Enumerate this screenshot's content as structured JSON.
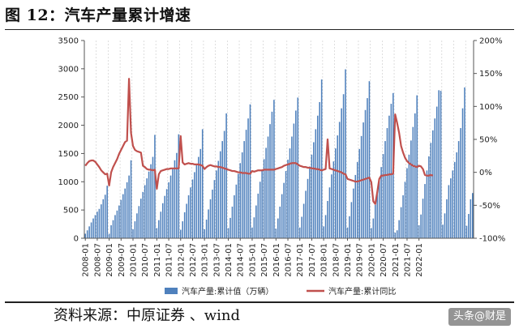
{
  "title": "图 12：汽车产量累计增速",
  "source": "资料来源：中原证券 、wind",
  "watermark": "头条@财是",
  "colors": {
    "bar": "#4f81bd",
    "line": "#c0504d"
  },
  "chart_data": {
    "type": "bar+line",
    "y_left": {
      "ticks": [
        0,
        500,
        1000,
        1500,
        2000,
        2500,
        3000,
        3500
      ],
      "range": [
        0,
        3500
      ]
    },
    "y_right": {
      "ticks": [
        "-100%",
        "-50%",
        "0%",
        "50%",
        "100%",
        "150%",
        "200%"
      ],
      "range": [
        -100,
        200
      ]
    },
    "x_tick_labels": [
      "2008-01",
      "2008-07",
      "2009-01",
      "2009-07",
      "2010-01",
      "2010-07",
      "2011-01",
      "2011-07",
      "2012-01",
      "2012-07",
      "2013-01",
      "2013-07",
      "2014-01",
      "2014-07",
      "2015-01",
      "2015-07",
      "2016-01",
      "2016-07",
      "2017-01",
      "2017-07",
      "2018-01",
      "2018-07",
      "2019-01",
      "2019-07",
      "2020-01",
      "2020-07",
      "2021-01",
      "2021-07",
      "2022-01"
    ],
    "start_month": "2008-01",
    "series": [
      {
        "name": "汽车产量:累计值（万辆）",
        "type": "bar",
        "axis": "left",
        "values": [
          80,
          140,
          210,
          280,
          350,
          410,
          470,
          520,
          600,
          690,
          770,
          930,
          80,
          230,
          320,
          410,
          490,
          580,
          680,
          780,
          880,
          990,
          1110,
          1380,
          160,
          300,
          440,
          570,
          700,
          820,
          940,
          1060,
          1180,
          1310,
          1440,
          1830,
          180,
          320,
          470,
          620,
          750,
          870,
          990,
          1110,
          1240,
          1380,
          1510,
          1840,
          150,
          300,
          460,
          610,
          760,
          900,
          1040,
          1170,
          1300,
          1440,
          1580,
          1930,
          160,
          330,
          510,
          690,
          860,
          1030,
          1200,
          1370,
          1540,
          1720,
          1900,
          2210,
          180,
          360,
          560,
          760,
          950,
          1140,
          1330,
          1520,
          1720,
          1920,
          2120,
          2370,
          190,
          370,
          580,
          790,
          1000,
          1200,
          1400,
          1600,
          1800,
          2020,
          2240,
          2450,
          170,
          350,
          560,
          780,
          980,
          1190,
          1390,
          1590,
          1800,
          2030,
          2260,
          2490,
          190,
          380,
          610,
          840,
          1050,
          1270,
          1480,
          1700,
          1930,
          2170,
          2410,
          2810,
          210,
          410,
          660,
          900,
          1130,
          1360,
          1590,
          1820,
          2060,
          2300,
          2550,
          2990,
          190,
          390,
          640,
          880,
          1120,
          1350,
          1580,
          1810,
          2050,
          2270,
          2480,
          2780,
          180,
          350,
          590,
          820,
          1040,
          1260,
          1490,
          1720,
          1950,
          2170,
          2380,
          2570,
          100,
          140,
          320,
          550,
          760,
          1000,
          1240,
          1480,
          1730,
          1970,
          2210,
          2530,
          230,
          420,
          700,
          960,
          1200,
          1450,
          1690,
          1910,
          2120,
          2330,
          2620,
          2610,
          240,
          440,
          690,
          940,
          1060,
          1200,
          1350,
          1520,
          1720,
          1950,
          2300,
          2670,
          220,
          430,
          690,
          800
        ]
      },
      {
        "name": "汽车产量:累计同比",
        "type": "line",
        "axis": "right",
        "values": [
          10,
          14,
          17,
          18,
          18,
          16,
          12,
          8,
          3,
          0,
          -3,
          -2,
          -20,
          0,
          8,
          14,
          20,
          28,
          34,
          40,
          46,
          48,
          142,
          60,
          40,
          34,
          32,
          31,
          30,
          10,
          8,
          5,
          4,
          4,
          3,
          4,
          -25,
          -3,
          2,
          3,
          4,
          5,
          5,
          6,
          6,
          6,
          6,
          6,
          55,
          15,
          12,
          13,
          14,
          13,
          13,
          12,
          12,
          12,
          11,
          10,
          5,
          8,
          10,
          11,
          10,
          9,
          9,
          8,
          8,
          7,
          6,
          5,
          4,
          3,
          2,
          2,
          1,
          0,
          0,
          -1,
          -1,
          -1,
          -2,
          -2,
          2,
          1,
          2,
          3,
          3,
          3,
          4,
          4,
          4,
          4,
          4,
          4,
          5,
          6,
          7,
          8,
          10,
          11,
          12,
          13,
          14,
          14,
          14,
          12,
          10,
          9,
          8,
          8,
          7,
          7,
          6,
          6,
          5,
          5,
          4,
          3,
          4,
          5,
          50,
          6,
          5,
          4,
          3,
          2,
          1,
          0,
          -2,
          -3,
          -10,
          -11,
          -12,
          -13,
          -14,
          -14,
          -13,
          -12,
          -11,
          -10,
          -9,
          -8,
          -15,
          -44,
          -48,
          -30,
          -10,
          -5,
          -5,
          -4,
          -4,
          -3,
          -3,
          -2,
          88,
          75,
          60,
          40,
          30,
          22,
          17,
          14,
          12,
          10,
          9,
          8,
          10,
          9,
          5,
          -4,
          -5,
          -5,
          -4,
          -5
        ]
      }
    ],
    "legend": "bottom-center"
  }
}
